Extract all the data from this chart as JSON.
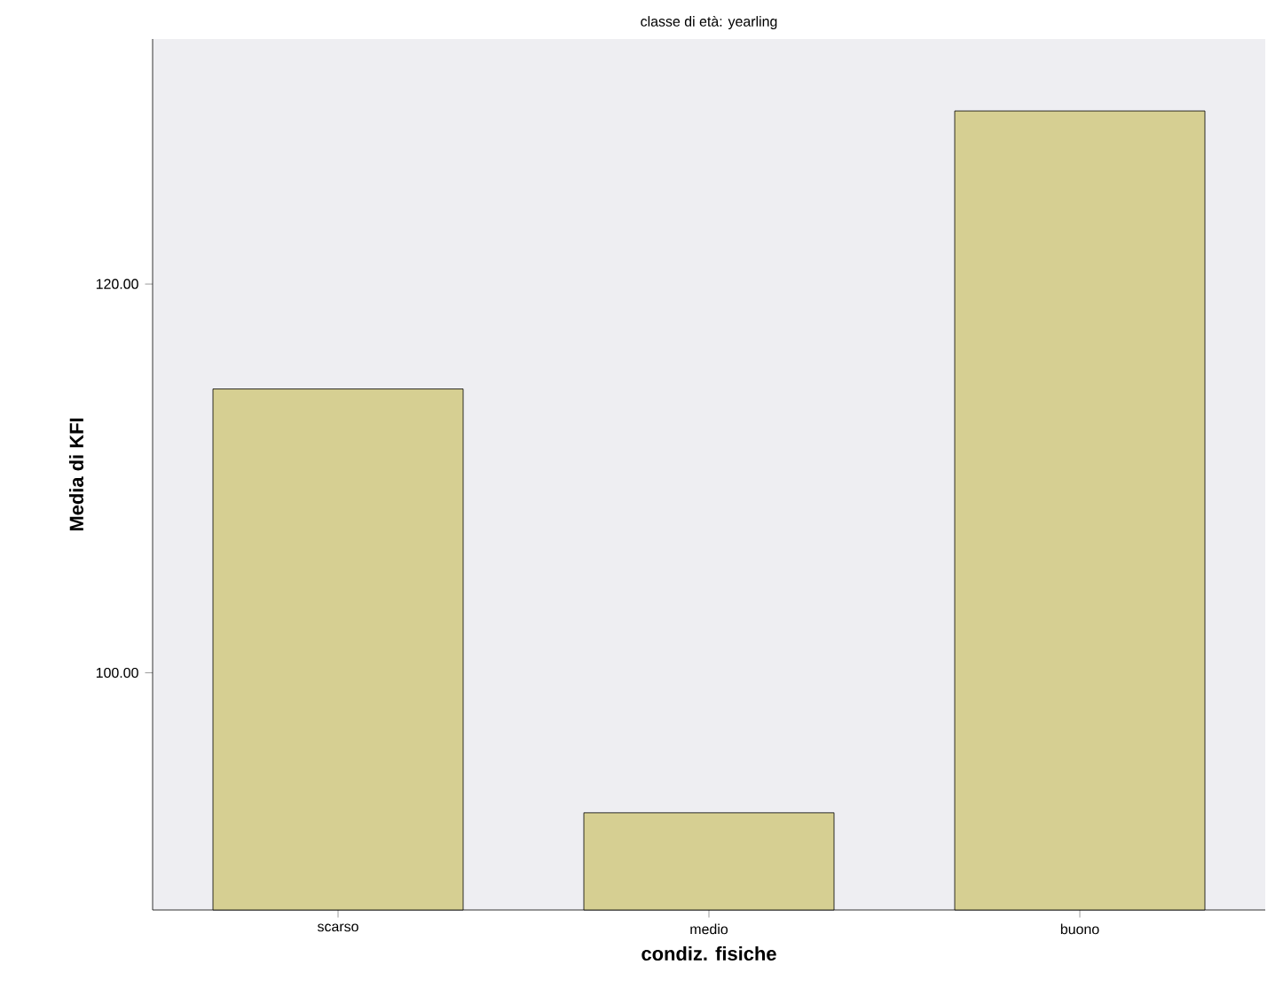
{
  "chart_data": {
    "type": "bar",
    "title": "classe di età: yearling",
    "xlabel": "condiz. fisiche",
    "ylabel": "Media di KFI",
    "categories": [
      "scarso",
      "medio",
      "buono"
    ],
    "values": [
      114.6,
      92.8,
      128.9
    ],
    "color": "#d6cf92",
    "ylim": [
      87.8,
      132.6
    ],
    "yticks": [
      {
        "value": 100,
        "label": "100.00"
      },
      {
        "value": 120,
        "label": "120.00"
      }
    ]
  }
}
